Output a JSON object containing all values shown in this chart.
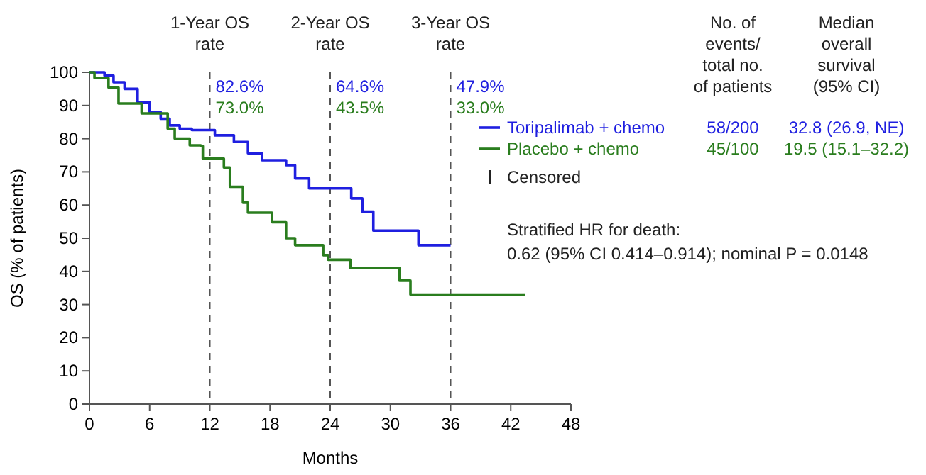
{
  "chart_data": {
    "type": "step",
    "xlabel": "Months",
    "ylabel": "OS (% of patients)",
    "xlim": [
      0,
      48
    ],
    "xticks": [
      0,
      6,
      12,
      18,
      24,
      30,
      36,
      42,
      48
    ],
    "ylim": [
      0,
      100
    ],
    "yticks": [
      0,
      10,
      20,
      30,
      40,
      50,
      60,
      70,
      80,
      90,
      100
    ],
    "grid": false,
    "legend": "top right",
    "marker": "none",
    "line_style": "solid",
    "series": [
      {
        "name": "Toripalimab + chemo",
        "color": "#1f1fe0",
        "x": [
          0,
          1.5,
          2.4,
          3.5,
          4.8,
          6,
          7.1,
          8,
          9,
          10.2,
          11.3,
          12,
          12.5,
          14.4,
          15.8,
          17.2,
          19.6,
          20.5,
          21.9,
          24.3,
          26.1,
          27.2,
          28.3,
          30,
          32.8,
          36
        ],
        "values": [
          100,
          99,
          97,
          95,
          91,
          88,
          86,
          84,
          83,
          82.6,
          82.6,
          82.6,
          81,
          79,
          75.6,
          73.5,
          72,
          68,
          65,
          65,
          62,
          58,
          52.3,
          52.3,
          47.9,
          47.9
        ]
      },
      {
        "name": "Placebo + chemo",
        "color": "#2a7d1e",
        "x": [
          0,
          0.5,
          1.9,
          2.9,
          5.2,
          7.8,
          8.5,
          10,
          11.1,
          11.3,
          13.4,
          14,
          15.3,
          15.8,
          18.2,
          19.6,
          20.5,
          23.3,
          23.8,
          26,
          30.9,
          32,
          43.4
        ],
        "values": [
          100,
          98.3,
          95.4,
          90.6,
          87.6,
          83,
          80,
          78,
          77.8,
          74,
          71.3,
          65.5,
          60.7,
          57.7,
          54.8,
          50,
          47.9,
          44.9,
          43.5,
          41,
          37.2,
          33,
          33
        ]
      }
    ],
    "ref_lines": [
      {
        "axis": "x",
        "value": 12,
        "label": "1-Year OS\nrate",
        "line_style": "dashed",
        "color": "#555555"
      },
      {
        "axis": "x",
        "value": 24,
        "label": "2-Year OS\nrate",
        "line_style": "dashed",
        "color": "#555555"
      },
      {
        "axis": "x",
        "value": 36,
        "label": "3-Year OS\nrate",
        "line_style": "dashed",
        "color": "#555555"
      }
    ],
    "annotations": [
      "82.6%",
      "73.0%",
      "64.6%",
      "43.5%",
      "47.9%",
      "33.0%",
      "No. of\nevents/\ntotal no.\nof patients",
      "Median\noverall\nsurvival\n(95% CI)",
      "58/200",
      "32.8 (26.9, NE)",
      "45/100",
      "19.5 (15.1–32.2)",
      "Censored",
      "Stratified HR for death:\n0.62 (95% CI 0.414–0.914); nominal P = 0.0148"
    ]
  }
}
